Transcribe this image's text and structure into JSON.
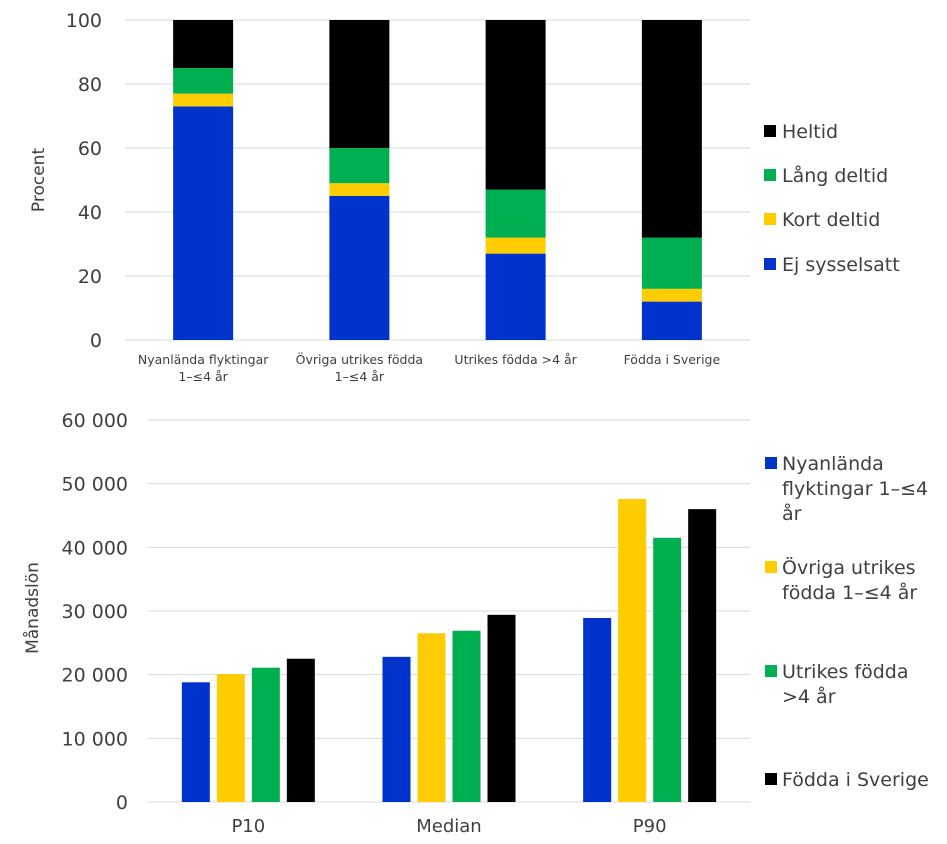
{
  "chart_data": [
    {
      "type": "bar",
      "stacked": true,
      "ylabel": "Procent",
      "ylim": [
        0,
        100
      ],
      "yticks": [
        "0",
        "20",
        "40",
        "60",
        "80",
        "100"
      ],
      "grid": true,
      "legend_position": "right",
      "categories": [
        [
          "Nyanlända flyktingar",
          "1–≤4 år"
        ],
        [
          "Övriga utrikes födda",
          "1–≤4 år"
        ],
        [
          "Utrikes födda >4 år"
        ],
        [
          "Födda i Sverige"
        ]
      ],
      "series": [
        {
          "name": "Ej sysselsatt",
          "color": "#0033cc",
          "values": [
            73,
            45,
            27,
            12
          ]
        },
        {
          "name": "Kort deltid",
          "color": "#ffcc00",
          "values": [
            4,
            4,
            5,
            4
          ]
        },
        {
          "name": "Lång deltid",
          "color": "#00b050",
          "values": [
            8,
            11,
            15,
            16
          ]
        },
        {
          "name": "Heltid",
          "color": "#000000",
          "values": [
            15,
            40,
            53,
            68
          ]
        }
      ],
      "legend_order": [
        "Heltid",
        "Lång deltid",
        "Kort deltid",
        "Ej sysselsatt"
      ]
    },
    {
      "type": "bar",
      "ylabel": "Månadslön",
      "ylim": [
        0,
        60000
      ],
      "yticks": [
        "0",
        "10 000",
        "20 000",
        "30 000",
        "40 000",
        "50 000",
        "60 000"
      ],
      "grid": true,
      "legend_position": "right",
      "categories": [
        "P10",
        "Median",
        "P90"
      ],
      "series": [
        {
          "name": "Nyanlända flyktingar 1–≤4 år",
          "legend_lines": [
            "Nyanlända",
            "flyktingar 1–≤4",
            "år"
          ],
          "color": "#0033cc",
          "values": [
            18800,
            22800,
            28900
          ]
        },
        {
          "name": "Övriga utrikes födda 1–≤4 år",
          "legend_lines": [
            "Övriga utrikes",
            "födda 1–≤4 år"
          ],
          "color": "#ffcc00",
          "values": [
            20100,
            26500,
            47600
          ]
        },
        {
          "name": "Utrikes födda >4 år",
          "legend_lines": [
            "Utrikes födda",
            ">4 år"
          ],
          "color": "#00b050",
          "values": [
            21100,
            26900,
            41500
          ]
        },
        {
          "name": "Födda i Sverige",
          "legend_lines": [
            "Födda i Sverige"
          ],
          "color": "#000000",
          "values": [
            22500,
            29400,
            46000
          ]
        }
      ]
    }
  ]
}
